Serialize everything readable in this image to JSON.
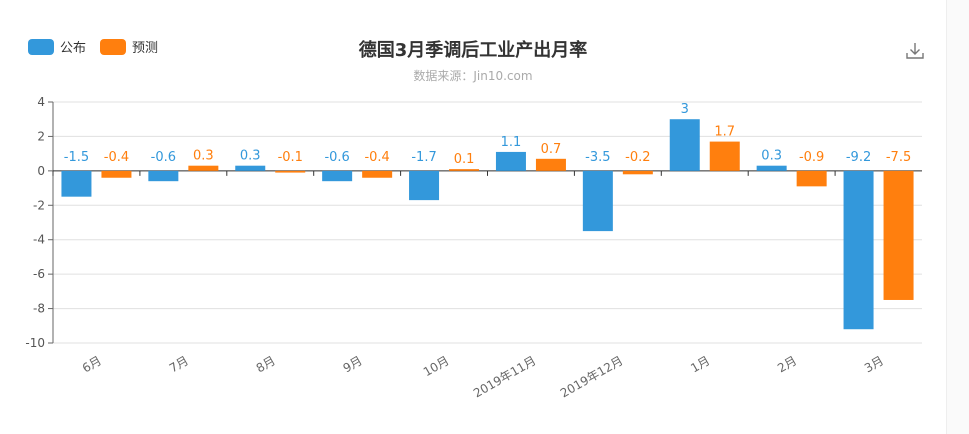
{
  "legend": [
    {
      "label": "公布",
      "color": "#3398DB"
    },
    {
      "label": "预测",
      "color": "#FF7F0E"
    }
  ],
  "chart_data": {
    "type": "bar",
    "title": "德国3月季调后工业产出月率",
    "subtitle": "数据来源：Jin10.com",
    "categories": [
      "6月",
      "7月",
      "8月",
      "9月",
      "10月",
      "2019年11月",
      "2019年12月",
      "1月",
      "2月",
      "3月"
    ],
    "series": [
      {
        "name": "公布",
        "color": "#3398DB",
        "values": [
          -1.5,
          -0.6,
          0.3,
          -0.6,
          -1.7,
          1.1,
          -3.5,
          3,
          0.3,
          -9.2
        ]
      },
      {
        "name": "预测",
        "color": "#FF7F0E",
        "values": [
          -0.4,
          0.3,
          -0.1,
          -0.4,
          0.1,
          0.7,
          -0.2,
          1.7,
          -0.9,
          -7.5
        ]
      }
    ],
    "ylim": [
      -10,
      4
    ],
    "yticks": [
      4,
      2,
      0,
      -2,
      -4,
      -6,
      -8,
      -10
    ],
    "grid": true,
    "legend_position": "top-left"
  },
  "icons": {
    "download": "download-icon"
  }
}
